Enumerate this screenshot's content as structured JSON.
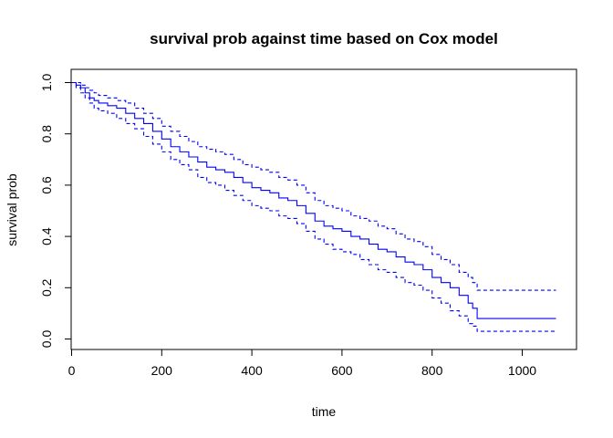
{
  "chart_data": {
    "type": "line",
    "title": "survival prob against time based on Cox model",
    "xlabel": "time",
    "ylabel": "survival prob",
    "xlim": [
      0,
      1100
    ],
    "ylim": [
      0,
      1.0
    ],
    "x_ticks": [
      0,
      200,
      400,
      600,
      800,
      1000
    ],
    "y_ticks": [
      0.0,
      0.2,
      0.4,
      0.6,
      0.8,
      1.0
    ],
    "x_tick_labels": [
      "0",
      "200",
      "400",
      "600",
      "800",
      "1000"
    ],
    "y_tick_labels": [
      "0.0",
      "0.2",
      "0.4",
      "0.6",
      "0.8",
      "1.0"
    ],
    "step": true,
    "grid": false,
    "line_color": "#0000ff",
    "series": [
      {
        "key": "estimate",
        "style": "solid",
        "x": [
          0,
          10,
          20,
          30,
          40,
          50,
          60,
          80,
          100,
          120,
          140,
          160,
          180,
          200,
          220,
          240,
          260,
          280,
          300,
          320,
          340,
          360,
          380,
          400,
          420,
          440,
          460,
          480,
          500,
          520,
          540,
          560,
          580,
          600,
          620,
          640,
          660,
          680,
          700,
          720,
          740,
          760,
          780,
          800,
          820,
          840,
          860,
          880,
          890,
          900,
          1075
        ],
        "y": [
          1.0,
          0.99,
          0.98,
          0.96,
          0.94,
          0.93,
          0.92,
          0.91,
          0.9,
          0.88,
          0.86,
          0.84,
          0.81,
          0.78,
          0.75,
          0.73,
          0.71,
          0.69,
          0.67,
          0.66,
          0.65,
          0.63,
          0.61,
          0.59,
          0.58,
          0.57,
          0.55,
          0.54,
          0.52,
          0.49,
          0.46,
          0.44,
          0.43,
          0.42,
          0.4,
          0.39,
          0.37,
          0.35,
          0.34,
          0.32,
          0.3,
          0.29,
          0.27,
          0.24,
          0.22,
          0.2,
          0.17,
          0.14,
          0.12,
          0.08,
          0.08
        ]
      },
      {
        "key": "upper",
        "style": "dashed",
        "x": [
          0,
          10,
          20,
          30,
          40,
          50,
          60,
          80,
          100,
          120,
          140,
          160,
          180,
          200,
          220,
          240,
          260,
          280,
          300,
          320,
          340,
          360,
          380,
          400,
          420,
          440,
          460,
          480,
          500,
          520,
          540,
          560,
          580,
          600,
          620,
          640,
          660,
          680,
          700,
          720,
          740,
          760,
          780,
          800,
          820,
          840,
          860,
          880,
          890,
          900,
          1075
        ],
        "y": [
          1.0,
          1.0,
          0.99,
          0.98,
          0.97,
          0.96,
          0.95,
          0.94,
          0.93,
          0.92,
          0.9,
          0.88,
          0.86,
          0.83,
          0.81,
          0.79,
          0.77,
          0.75,
          0.74,
          0.73,
          0.72,
          0.7,
          0.68,
          0.67,
          0.66,
          0.65,
          0.63,
          0.62,
          0.6,
          0.57,
          0.54,
          0.52,
          0.51,
          0.5,
          0.48,
          0.47,
          0.46,
          0.44,
          0.43,
          0.41,
          0.39,
          0.38,
          0.36,
          0.33,
          0.31,
          0.29,
          0.26,
          0.24,
          0.22,
          0.19,
          0.19
        ]
      },
      {
        "key": "lower",
        "style": "dashed",
        "x": [
          0,
          10,
          20,
          30,
          40,
          50,
          60,
          80,
          100,
          120,
          140,
          160,
          180,
          200,
          220,
          240,
          260,
          280,
          300,
          320,
          340,
          360,
          380,
          400,
          420,
          440,
          460,
          480,
          500,
          520,
          540,
          560,
          580,
          600,
          620,
          640,
          660,
          680,
          700,
          720,
          740,
          760,
          780,
          800,
          820,
          840,
          860,
          880,
          890,
          900,
          1075
        ],
        "y": [
          1.0,
          0.98,
          0.96,
          0.94,
          0.92,
          0.9,
          0.89,
          0.88,
          0.86,
          0.84,
          0.82,
          0.79,
          0.76,
          0.73,
          0.7,
          0.68,
          0.66,
          0.63,
          0.61,
          0.6,
          0.58,
          0.56,
          0.54,
          0.52,
          0.51,
          0.5,
          0.48,
          0.47,
          0.45,
          0.42,
          0.39,
          0.37,
          0.35,
          0.34,
          0.33,
          0.31,
          0.29,
          0.27,
          0.26,
          0.24,
          0.22,
          0.21,
          0.19,
          0.16,
          0.14,
          0.11,
          0.09,
          0.06,
          0.05,
          0.03,
          0.03
        ]
      }
    ]
  }
}
